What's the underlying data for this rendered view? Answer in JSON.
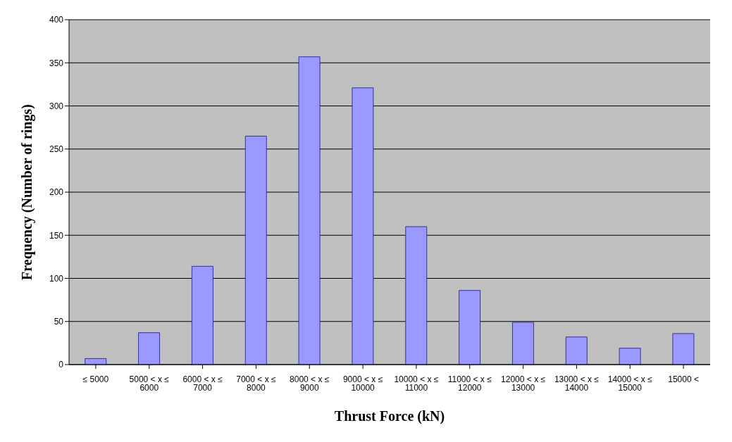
{
  "chart_data": {
    "type": "bar",
    "xlabel": "Thrust Force (kN)",
    "ylabel": "Frequency (Number of rings)",
    "categories": [
      "≤ 5000",
      "5000 < x ≤ 6000",
      "6000 < x ≤ 7000",
      "7000 < x ≤ 8000",
      "8000 < x ≤ 9000",
      "9000 < x ≤ 10000",
      "10000 < x ≤ 11000",
      "11000 < x ≤ 12000",
      "12000 < x ≤ 13000",
      "13000 < x ≤ 14000",
      "14000 < x ≤ 15000",
      "15000 <"
    ],
    "values": [
      7,
      37,
      114,
      265,
      357,
      321,
      160,
      86,
      49,
      32,
      19,
      36
    ],
    "color": "#9999ff",
    "ylim": [
      0,
      400
    ],
    "yticks": [
      0,
      50,
      100,
      150,
      200,
      250,
      300,
      350,
      400
    ],
    "grid": "y"
  }
}
